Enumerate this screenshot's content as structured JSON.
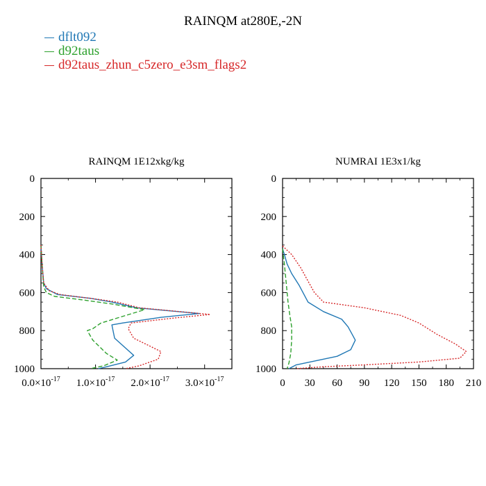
{
  "title": "RAINQM at280E,-2N",
  "legend": [
    {
      "label": "dflt092",
      "color": "#1f77b4",
      "dash": "solid"
    },
    {
      "label": "d92taus",
      "color": "#2ca02c",
      "dash": "dashed"
    },
    {
      "label": "d92taus_zhun_c5zero_e3sm_flags2",
      "color": "#d62728",
      "dash": "dotted"
    }
  ],
  "chart_data": [
    {
      "type": "line",
      "title": "RAINQM  1E12xkg/kg",
      "xlim": [
        0,
        3.5e-17
      ],
      "ylim": [
        1000,
        0
      ],
      "x_ticks": [
        {
          "value": 0,
          "mant": "0.0",
          "exp": "-17"
        },
        {
          "value": 1e-17,
          "mant": "1.0",
          "exp": "-17"
        },
        {
          "value": 2e-17,
          "mant": "2.0",
          "exp": "-17"
        },
        {
          "value": 3e-17,
          "mant": "3.0",
          "exp": "-17"
        }
      ],
      "x_tick_prefix": "×10",
      "y_ticks": [
        0,
        200,
        400,
        600,
        800,
        1000
      ],
      "series": [
        {
          "name": "dflt092",
          "color": "#1f77b4",
          "dash": "solid",
          "points": [
            [
              0,
              350
            ],
            [
              2e-19,
              450
            ],
            [
              5e-19,
              550
            ],
            [
              1e-18,
              580
            ],
            [
              3e-18,
              610
            ],
            [
              9e-18,
              630
            ],
            [
              1.3e-17,
              650
            ],
            [
              1.75e-17,
              680
            ],
            [
              2.9e-17,
              710
            ],
            [
              2.2e-17,
              730
            ],
            [
              1.5e-17,
              760
            ],
            [
              1.3e-17,
              770
            ],
            [
              1.35e-17,
              840
            ],
            [
              1.7e-17,
              930
            ],
            [
              1.55e-17,
              965
            ],
            [
              1.2e-17,
              990
            ],
            [
              1.05e-17,
              1000
            ]
          ]
        },
        {
          "name": "d92taus",
          "color": "#2ca02c",
          "dash": "dashed",
          "points": [
            [
              0,
              350
            ],
            [
              2e-19,
              450
            ],
            [
              5e-19,
              570
            ],
            [
              1e-18,
              600
            ],
            [
              2.5e-18,
              620
            ],
            [
              8e-18,
              640
            ],
            [
              1.3e-17,
              660
            ],
            [
              1.9e-17,
              690
            ],
            [
              1.1e-17,
              760
            ],
            [
              9.5e-18,
              790
            ],
            [
              8.5e-18,
              800
            ],
            [
              9.5e-18,
              850
            ],
            [
              1.2e-17,
              920
            ],
            [
              1.4e-17,
              955
            ],
            [
              1.15e-17,
              985
            ],
            [
              9e-18,
              1000
            ]
          ]
        },
        {
          "name": "d92taus_zhun_c5zero_e3sm_flags2",
          "color": "#d62728",
          "dash": "dotted",
          "points": [
            [
              0,
              350
            ],
            [
              2e-19,
              450
            ],
            [
              5e-19,
              550
            ],
            [
              1.5e-18,
              590
            ],
            [
              3.5e-18,
              610
            ],
            [
              9e-18,
              630
            ],
            [
              1.4e-17,
              650
            ],
            [
              1.8e-17,
              680
            ],
            [
              3.1e-17,
              715
            ],
            [
              2.4e-17,
              735
            ],
            [
              1.65e-17,
              760
            ],
            [
              1.6e-17,
              790
            ],
            [
              1.7e-17,
              840
            ],
            [
              2.2e-17,
              910
            ],
            [
              2.15e-17,
              950
            ],
            [
              1.8e-17,
              985
            ],
            [
              1.55e-17,
              1000
            ]
          ]
        }
      ]
    },
    {
      "type": "line",
      "title": "NUMRAI  1E3x1/kg",
      "xlim": [
        0,
        210
      ],
      "ylim": [
        1000,
        0
      ],
      "x_ticks": [
        0,
        30,
        60,
        90,
        120,
        150,
        180,
        210
      ],
      "y_ticks": [
        0,
        200,
        400,
        600,
        800,
        1000
      ],
      "series": [
        {
          "name": "dflt092",
          "color": "#1f77b4",
          "dash": "solid",
          "points": [
            [
              0,
              370
            ],
            [
              2,
              400
            ],
            [
              5,
              450
            ],
            [
              10,
              500
            ],
            [
              18,
              560
            ],
            [
              28,
              650
            ],
            [
              45,
              700
            ],
            [
              65,
              740
            ],
            [
              72,
              780
            ],
            [
              80,
              850
            ],
            [
              75,
              900
            ],
            [
              60,
              935
            ],
            [
              35,
              960
            ],
            [
              15,
              980
            ],
            [
              7,
              1000
            ]
          ]
        },
        {
          "name": "d92taus",
          "color": "#2ca02c",
          "dash": "dashed",
          "points": [
            [
              0,
              370
            ],
            [
              2,
              450
            ],
            [
              4,
              550
            ],
            [
              6,
              650
            ],
            [
              8,
              720
            ],
            [
              10,
              780
            ],
            [
              10,
              850
            ],
            [
              9,
              920
            ],
            [
              7,
              970
            ],
            [
              5,
              1000
            ]
          ]
        },
        {
          "name": "d92taus_zhun_c5zero_e3sm_flags2",
          "color": "#d62728",
          "dash": "dotted",
          "points": [
            [
              0,
              355
            ],
            [
              10,
              400
            ],
            [
              20,
              470
            ],
            [
              28,
              540
            ],
            [
              35,
              600
            ],
            [
              45,
              650
            ],
            [
              90,
              680
            ],
            [
              130,
              720
            ],
            [
              150,
              760
            ],
            [
              170,
              820
            ],
            [
              190,
              870
            ],
            [
              202,
              910
            ],
            [
              195,
              945
            ],
            [
              150,
              965
            ],
            [
              90,
              980
            ],
            [
              45,
              990
            ],
            [
              15,
              1000
            ]
          ]
        }
      ]
    }
  ]
}
